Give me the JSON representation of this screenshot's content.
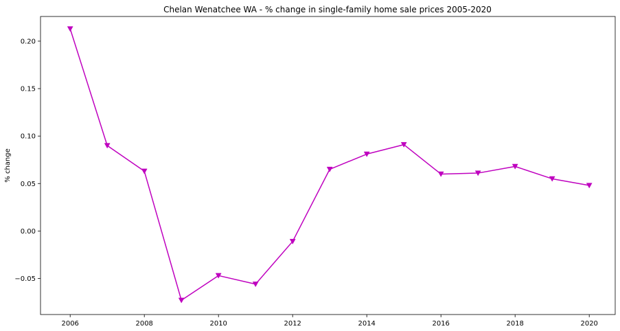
{
  "chart_data": {
    "type": "line",
    "title": "Chelan Wenatchee WA - % change in single-family home sale prices 2005-2020",
    "xlabel": "",
    "ylabel": "% change",
    "x": [
      2006,
      2007,
      2008,
      2009,
      2010,
      2011,
      2012,
      2013,
      2014,
      2015,
      2016,
      2017,
      2018,
      2019,
      2020
    ],
    "series": [
      {
        "values": [
          0.213,
          0.09,
          0.063,
          -0.073,
          -0.047,
          -0.056,
          -0.011,
          0.065,
          0.081,
          0.091,
          0.06,
          0.061,
          0.068,
          0.055,
          0.048
        ]
      }
    ],
    "xlim": [
      2005.2,
      2020.7
    ],
    "ylim": [
      -0.088,
      0.226
    ],
    "xticks": [
      2006,
      2008,
      2010,
      2012,
      2014,
      2016,
      2018,
      2020
    ],
    "xtick_labels": [
      "2006",
      "2008",
      "2010",
      "2012",
      "2014",
      "2016",
      "2018",
      "2020"
    ],
    "yticks": [
      -0.05,
      0.0,
      0.05,
      0.1,
      0.15,
      0.2
    ],
    "ytick_labels": [
      "−0.05",
      "0.00",
      "0.05",
      "0.10",
      "0.15",
      "0.20"
    ],
    "grid": false,
    "line_color": "#bf00bf",
    "marker": "triangle-down"
  }
}
